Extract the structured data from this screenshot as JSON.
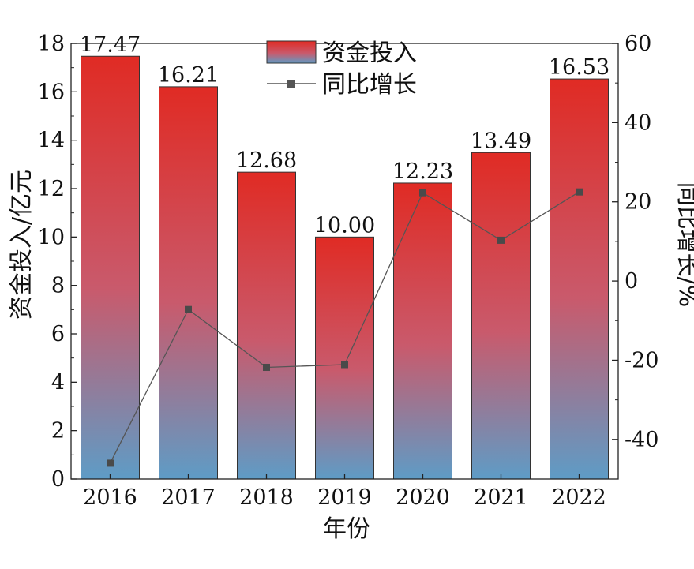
{
  "chart_data": {
    "type": "bar",
    "categories": [
      "2016",
      "2017",
      "2018",
      "2019",
      "2020",
      "2021",
      "2022"
    ],
    "series": [
      {
        "name": "资金投入",
        "axis": "left",
        "values": [
          17.47,
          16.21,
          12.68,
          10.0,
          12.23,
          13.49,
          16.53
        ],
        "value_labels": [
          "17.47",
          "16.21",
          "12.68",
          "10.00",
          "12.23",
          "13.49",
          "16.53"
        ],
        "color_top": "#e02b24",
        "color_bottom": "#5e9cc6"
      },
      {
        "name": "同比增长",
        "type": "line",
        "axis": "right",
        "values": [
          -46,
          -7.2,
          -21.8,
          -21.1,
          22.3,
          10.3,
          22.5
        ],
        "color": "#555555"
      }
    ],
    "xlabel": "年份",
    "ylabel": "资金投入/亿元",
    "y2label": "同比增长/%",
    "ylim": [
      0,
      18
    ],
    "y2lim": [
      -50,
      60
    ],
    "yticks": [
      "0",
      "2",
      "4",
      "6",
      "8",
      "10",
      "12",
      "14",
      "16",
      "18"
    ],
    "y2ticks": [
      "-40",
      "-20",
      "0",
      "20",
      "40",
      "60"
    ],
    "legend_position": "top-center",
    "grid": false
  }
}
